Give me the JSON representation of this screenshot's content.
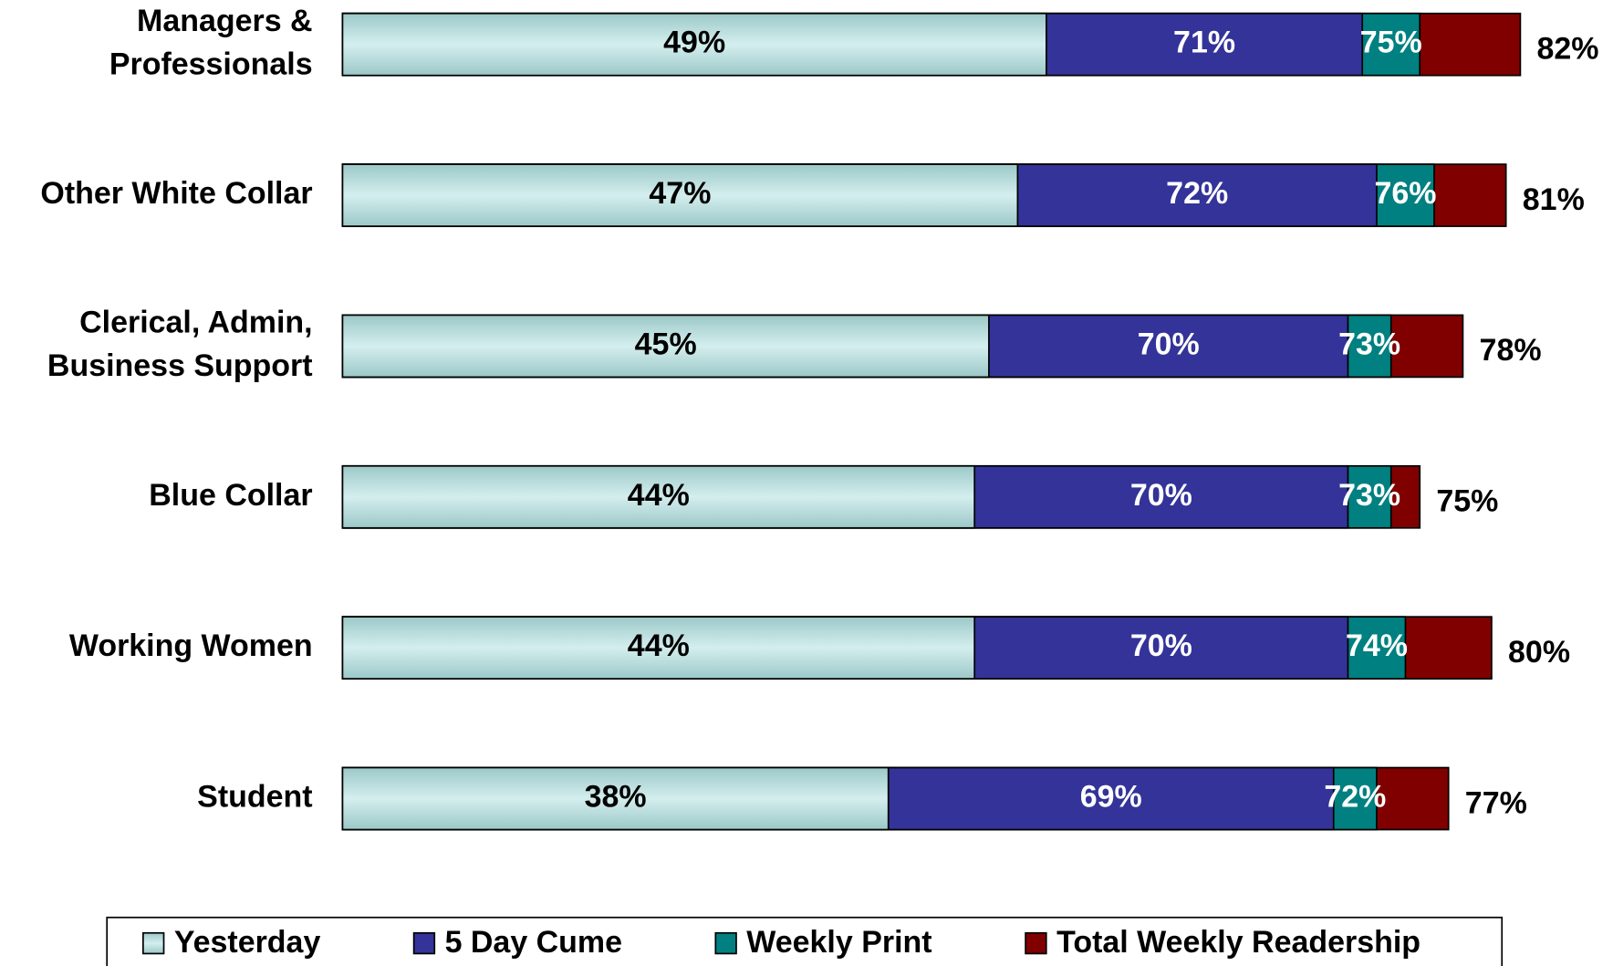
{
  "chart_data": {
    "type": "bar",
    "orientation": "horizontal",
    "overlap": true,
    "categories": [
      [
        "Managers &",
        "Professionals"
      ],
      [
        "Other White Collar"
      ],
      [
        "Clerical, Admin,",
        "Business Support"
      ],
      [
        "Blue Collar"
      ],
      [
        "Working Women"
      ],
      [
        "Student"
      ]
    ],
    "series": [
      {
        "name": "Yesterday",
        "color": "#b9e0e0",
        "values": [
          49,
          47,
          45,
          44,
          44,
          38
        ],
        "value_labels": [
          "49%",
          "47%",
          "45%",
          "44%",
          "44%",
          "38%"
        ]
      },
      {
        "name": "5 Day Cume",
        "color": "#333399",
        "values": [
          71,
          72,
          70,
          70,
          70,
          69
        ],
        "value_labels": [
          "71%",
          "72%",
          "70%",
          "70%",
          "70%",
          "69%"
        ]
      },
      {
        "name": "Weekly Print",
        "color": "#008080",
        "values": [
          75,
          76,
          73,
          73,
          74,
          72
        ],
        "value_labels": [
          "75%",
          "76%",
          "73%",
          "73%",
          "74%",
          "72%"
        ]
      },
      {
        "name": "Total Weekly Readership",
        "color": "#800000",
        "values": [
          82,
          81,
          78,
          75,
          80,
          77
        ],
        "value_labels": [
          "82%",
          "81%",
          "78%",
          "75%",
          "80%",
          "77%"
        ]
      }
    ],
    "legend": "bottom"
  }
}
